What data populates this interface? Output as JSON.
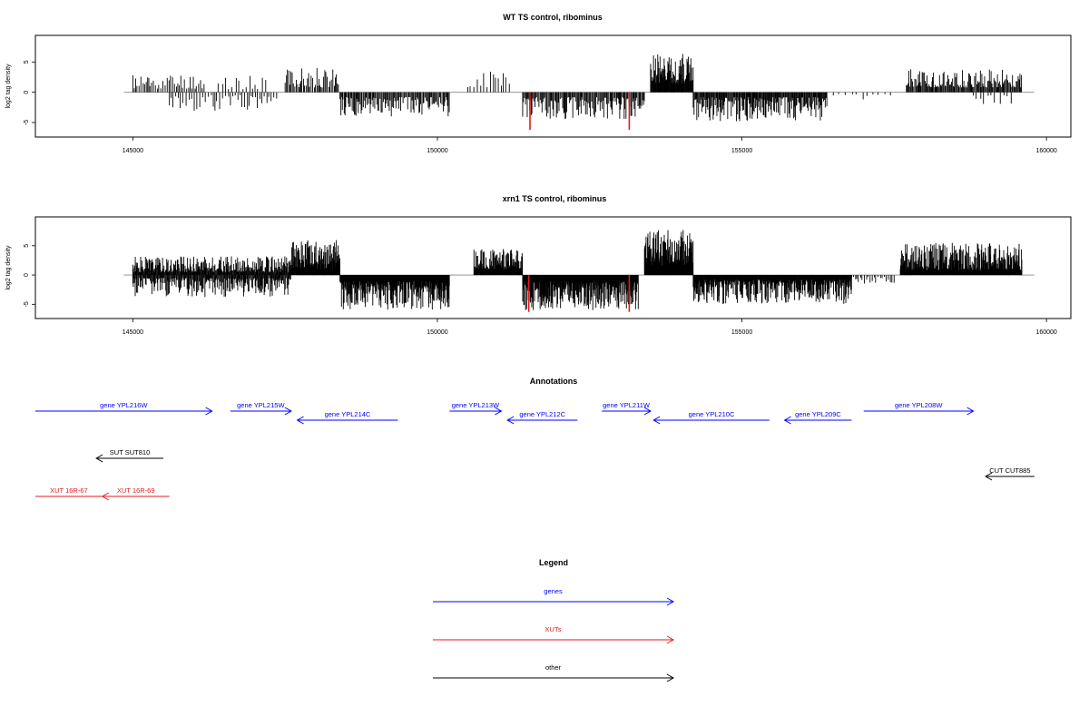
{
  "chart_data": [
    {
      "type": "bar",
      "title": "WT TS control, ribominus",
      "ylabel": "log2 tag density",
      "xlabel": "",
      "xlim": [
        143400,
        160400
      ],
      "ylim": [
        -6.5,
        8.5
      ],
      "x_ticks": [
        "145000",
        "150000",
        "155000",
        "160000"
      ],
      "y_ticks": [
        "-5",
        "0",
        "5"
      ],
      "grid": false,
      "segments": [
        {
          "from": 145000,
          "to": 146200,
          "sign": 1,
          "min": 0.6,
          "max": 3.2,
          "step": 28,
          "seed": 11
        },
        {
          "from": 145600,
          "to": 147400,
          "sign": -1,
          "min": 0.5,
          "max": 3.2,
          "step": 40,
          "seed": 12
        },
        {
          "from": 146400,
          "to": 147200,
          "sign": 1,
          "min": 0.5,
          "max": 2.8,
          "step": 60,
          "seed": 13
        },
        {
          "from": 147500,
          "to": 148400,
          "sign": 1,
          "min": 0.8,
          "max": 4.0,
          "step": 20,
          "seed": 14
        },
        {
          "from": 148400,
          "to": 150200,
          "sign": -1,
          "min": 0.8,
          "max": 4.0,
          "step": 16,
          "seed": 15
        },
        {
          "from": 150500,
          "to": 151200,
          "sign": 1,
          "min": 0.8,
          "max": 3.5,
          "step": 45,
          "seed": 16
        },
        {
          "from": 151400,
          "to": 153400,
          "sign": -1,
          "min": 0.8,
          "max": 4.5,
          "step": 16,
          "seed": 17
        },
        {
          "from": 153500,
          "to": 154200,
          "sign": 1,
          "min": 1.5,
          "max": 6.5,
          "step": 8,
          "seed": 18
        },
        {
          "from": 154200,
          "to": 156400,
          "sign": -1,
          "min": 0.8,
          "max": 4.8,
          "step": 12,
          "seed": 19
        },
        {
          "from": 156500,
          "to": 157500,
          "sign": -1,
          "min": 0.3,
          "max": 1.2,
          "step": 90,
          "seed": 20
        },
        {
          "from": 157700,
          "to": 159600,
          "sign": 1,
          "min": 0.8,
          "max": 3.8,
          "step": 14,
          "seed": 21
        },
        {
          "from": 158800,
          "to": 159500,
          "sign": -1,
          "min": 0.5,
          "max": 2.5,
          "step": 70,
          "seed": 22
        }
      ],
      "highlights": [
        {
          "x": 151520,
          "value": -6.2,
          "color": "#e41a1c"
        },
        {
          "x": 153150,
          "value": -6.2,
          "color": "#e41a1c"
        }
      ]
    },
    {
      "type": "bar",
      "title": "xrn1 TS control, ribominus",
      "ylabel": "log2 tag density",
      "xlabel": "",
      "xlim": [
        143400,
        160400
      ],
      "ylim": [
        -6.5,
        9.0
      ],
      "x_ticks": [
        "145000",
        "150000",
        "155000",
        "160000"
      ],
      "y_ticks": [
        "-5",
        "0",
        "5"
      ],
      "grid": false,
      "segments": [
        {
          "from": 145000,
          "to": 147600,
          "sign": 1,
          "min": 0.5,
          "max": 3.2,
          "step": 10,
          "seed": 31
        },
        {
          "from": 145000,
          "to": 147600,
          "sign": -1,
          "min": 0.5,
          "max": 3.8,
          "step": 12,
          "seed": 32
        },
        {
          "from": 147600,
          "to": 148400,
          "sign": 1,
          "min": 1.0,
          "max": 6.0,
          "step": 6,
          "seed": 33
        },
        {
          "from": 148400,
          "to": 150200,
          "sign": -1,
          "min": 1.0,
          "max": 6.0,
          "step": 6,
          "seed": 34
        },
        {
          "from": 150600,
          "to": 151400,
          "sign": 1,
          "min": 1.0,
          "max": 4.5,
          "step": 7,
          "seed": 35
        },
        {
          "from": 151400,
          "to": 153300,
          "sign": -1,
          "min": 1.0,
          "max": 6.0,
          "step": 6,
          "seed": 36
        },
        {
          "from": 153400,
          "to": 154200,
          "sign": 1,
          "min": 1.5,
          "max": 7.8,
          "step": 5,
          "seed": 37
        },
        {
          "from": 154200,
          "to": 156800,
          "sign": -1,
          "min": 0.8,
          "max": 5.0,
          "step": 7,
          "seed": 38
        },
        {
          "from": 156800,
          "to": 157500,
          "sign": -1,
          "min": 0.3,
          "max": 1.5,
          "step": 30,
          "seed": 39
        },
        {
          "from": 157600,
          "to": 159600,
          "sign": 1,
          "min": 0.8,
          "max": 5.5,
          "step": 6,
          "seed": 40
        }
      ],
      "highlights": [
        {
          "x": 151500,
          "value": -6.3,
          "color": "#e41a1c"
        },
        {
          "x": 153150,
          "value": -6.3,
          "color": "#e41a1c"
        }
      ]
    }
  ],
  "annotations": {
    "title": "Annotations",
    "items": [
      {
        "label": "gene YPL216W",
        "start": 143400,
        "end": 146300,
        "strand": "+",
        "color": "#0000ff",
        "lane": 1
      },
      {
        "label": "gene YPL215W",
        "start": 146600,
        "end": 147600,
        "strand": "+",
        "color": "#0000ff",
        "lane": 1
      },
      {
        "label": "gene YPL214C",
        "start": 147700,
        "end": 149350,
        "strand": "-",
        "color": "#0000ff",
        "lane": 2
      },
      {
        "label": "gene YPL213W",
        "start": 150200,
        "end": 151050,
        "strand": "+",
        "color": "#0000ff",
        "lane": 1
      },
      {
        "label": "gene YPL212C",
        "start": 151150,
        "end": 152300,
        "strand": "-",
        "color": "#0000ff",
        "lane": 2
      },
      {
        "label": "gene YPL211W",
        "start": 152700,
        "end": 153500,
        "strand": "+",
        "color": "#0000ff",
        "lane": 1
      },
      {
        "label": "gene YPL210C",
        "start": 153550,
        "end": 155450,
        "strand": "-",
        "color": "#0000ff",
        "lane": 2
      },
      {
        "label": "gene YPL209C",
        "start": 155700,
        "end": 156800,
        "strand": "-",
        "color": "#0000ff",
        "lane": 2
      },
      {
        "label": "gene YPL208W",
        "start": 157000,
        "end": 158800,
        "strand": "+",
        "color": "#0000ff",
        "lane": 1
      },
      {
        "label": "SUT SUT810",
        "start": 144400,
        "end": 145500,
        "strand": "-",
        "color": "#000000",
        "lane": 4
      },
      {
        "label": "CUT CUT885",
        "start": 159000,
        "end": 159800,
        "strand": "-",
        "color": "#000000",
        "lane": 5
      },
      {
        "label": "XUT 16R-67",
        "start": 143400,
        "end": 144500,
        "strand": "",
        "color": "#e41a1c",
        "lane": 6
      },
      {
        "label": "XUT 16R-69",
        "start": 144500,
        "end": 145600,
        "strand": "-",
        "color": "#e41a1c",
        "lane": 6
      }
    ]
  },
  "legend": {
    "title": "Legend",
    "entries": [
      {
        "label": "genes",
        "color": "#0000ff"
      },
      {
        "label": "XUTs",
        "color": "#e41a1c"
      },
      {
        "label": "other",
        "color": "#000000"
      }
    ]
  },
  "colors": {
    "axis": "#000000",
    "bars": "#000000",
    "baseline": "#888888"
  }
}
